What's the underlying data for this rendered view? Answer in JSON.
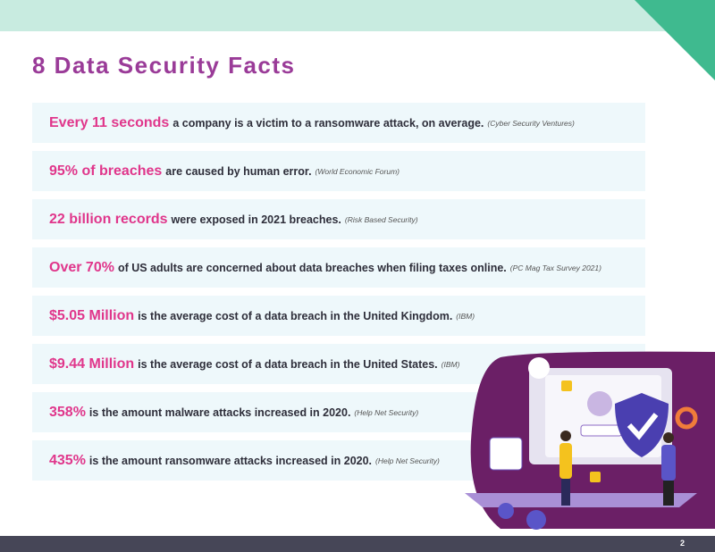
{
  "header": {
    "title": "8 Data Security Facts"
  },
  "facts": [
    {
      "highlight": "Every 11 seconds",
      "text": "a company is a victim to a ransomware attack, on average.",
      "source": "(Cyber Security Ventures)"
    },
    {
      "highlight": "95% of breaches",
      "text": "are caused by human error.",
      "source": "(World Economic Forum)"
    },
    {
      "highlight": "22 billion records",
      "text": "were exposed in 2021 breaches.",
      "source": "(Risk Based Security)"
    },
    {
      "highlight": "Over 70%",
      "text": "of US adults are concerned about data breaches when filing taxes online.",
      "source": "(PC Mag Tax Survey 2021)"
    },
    {
      "highlight": "$5.05 Million",
      "text": "is the average cost of a data breach in the United Kingdom.",
      "source": "(IBM)"
    },
    {
      "highlight": "$9.44 Million",
      "text": "is the average cost of a data breach in the United States.",
      "source": "(IBM)"
    },
    {
      "highlight": "358%",
      "text": "is the amount malware attacks increased in 2020.",
      "source": "(Help Net Security)"
    },
    {
      "highlight": "435%",
      "text": "is the amount ransomware attacks increased in 2020.",
      "source": "(Help Net Security)"
    }
  ],
  "footer": {
    "page": "2"
  }
}
